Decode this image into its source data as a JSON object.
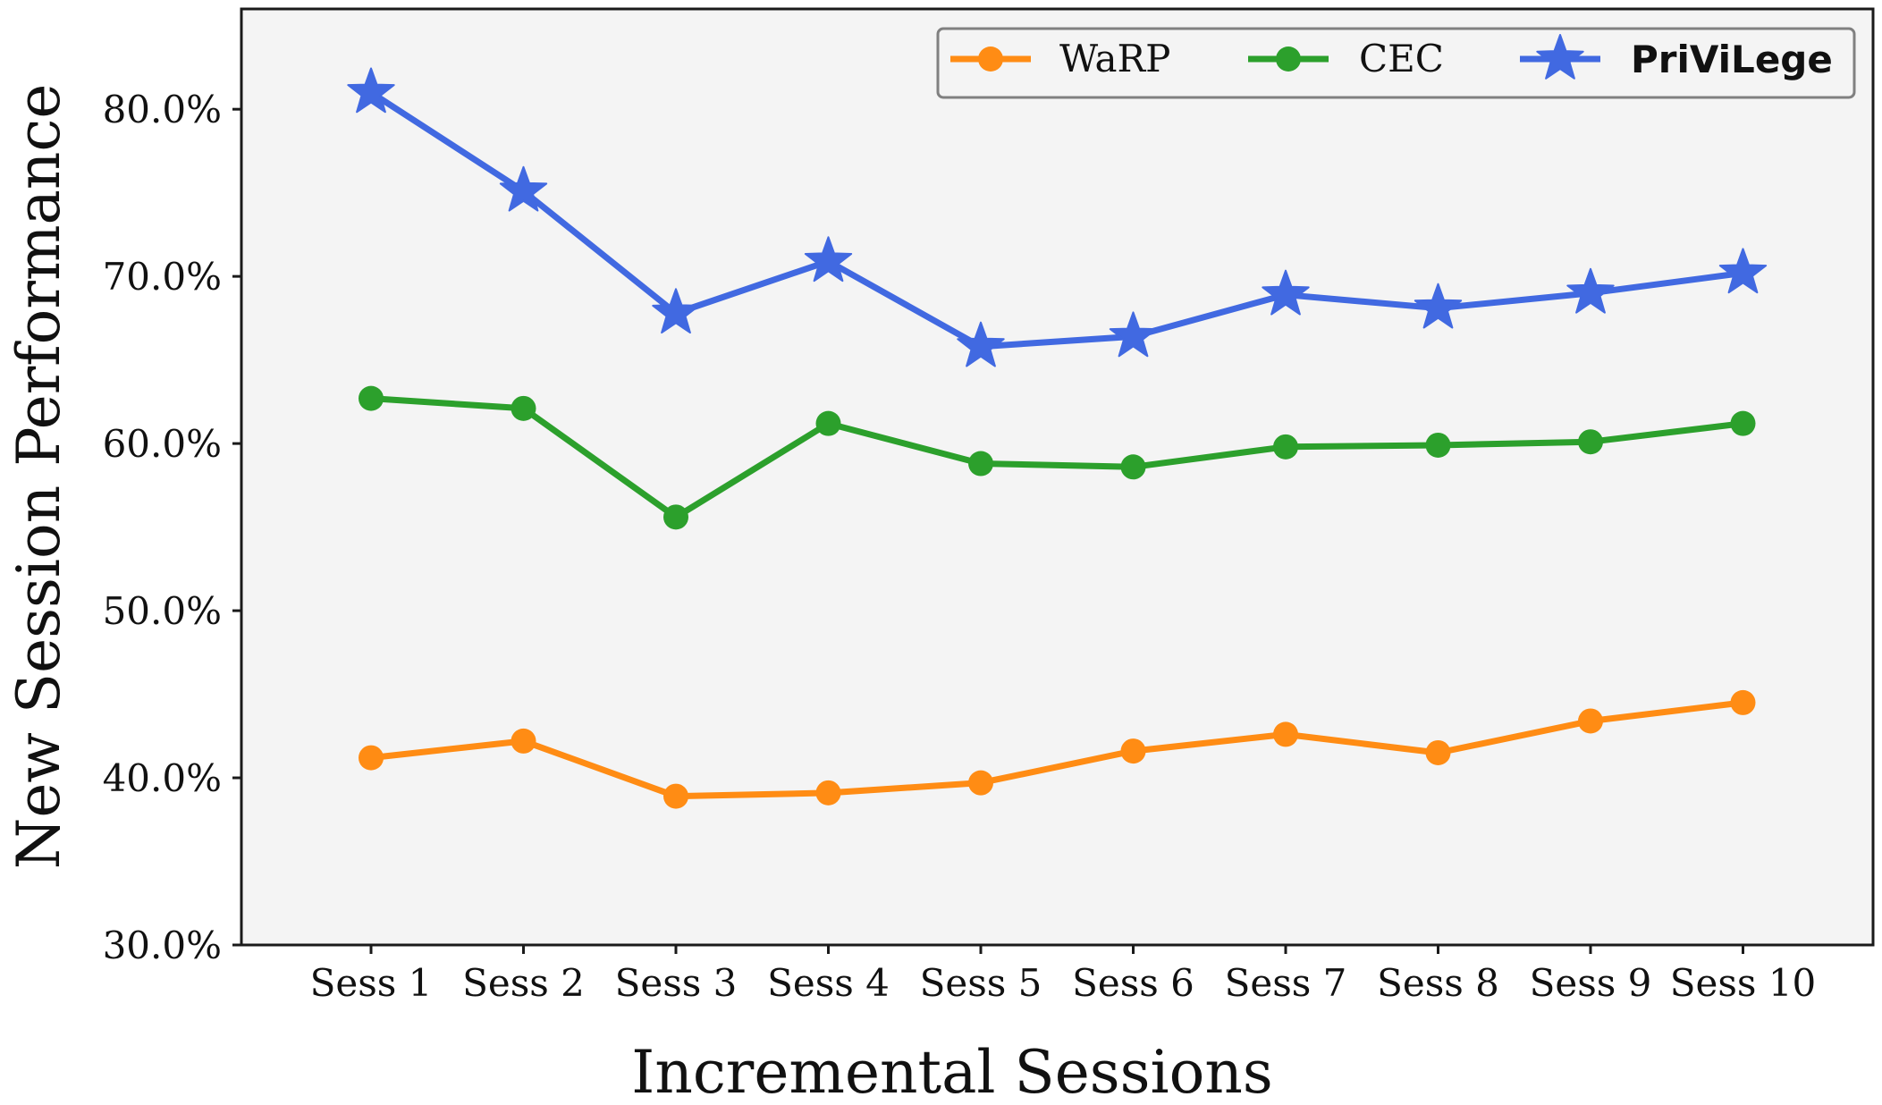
{
  "chart_data": {
    "type": "line",
    "title": "",
    "xlabel": "Incremental Sessions",
    "ylabel": "New Session Performance",
    "categories": [
      "Sess 1",
      "Sess 2",
      "Sess 3",
      "Sess 4",
      "Sess 5",
      "Sess 6",
      "Sess 7",
      "Sess 8",
      "Sess 9",
      "Sess 10"
    ],
    "ylim": [
      30,
      86
    ],
    "yticks": [
      30,
      40,
      50,
      60,
      70,
      80
    ],
    "ytick_labels": [
      "30.0%",
      "40.0%",
      "50.0%",
      "60.0%",
      "70.0%",
      "80.0%"
    ],
    "grid": false,
    "legend_position": "top-right",
    "series": [
      {
        "name": "WaRP",
        "color": "#ff8c14",
        "marker": "circle",
        "bold": false,
        "values": [
          41.2,
          42.2,
          38.9,
          39.1,
          39.7,
          41.6,
          42.6,
          41.5,
          43.4,
          44.5
        ]
      },
      {
        "name": "CEC",
        "color": "#2ca02c",
        "marker": "circle",
        "bold": false,
        "values": [
          62.7,
          62.1,
          55.6,
          61.2,
          58.8,
          58.6,
          59.8,
          59.9,
          60.1,
          61.2
        ]
      },
      {
        "name": "PriViLege",
        "color": "#4169e1",
        "marker": "star",
        "bold": true,
        "values": [
          81.0,
          75.1,
          67.8,
          70.9,
          65.8,
          66.4,
          68.9,
          68.1,
          69.0,
          70.2
        ]
      }
    ]
  },
  "style": {
    "plot_background": "#f4f4f4",
    "axis_color": "#1a1a1a",
    "legend_border": "#808080"
  }
}
